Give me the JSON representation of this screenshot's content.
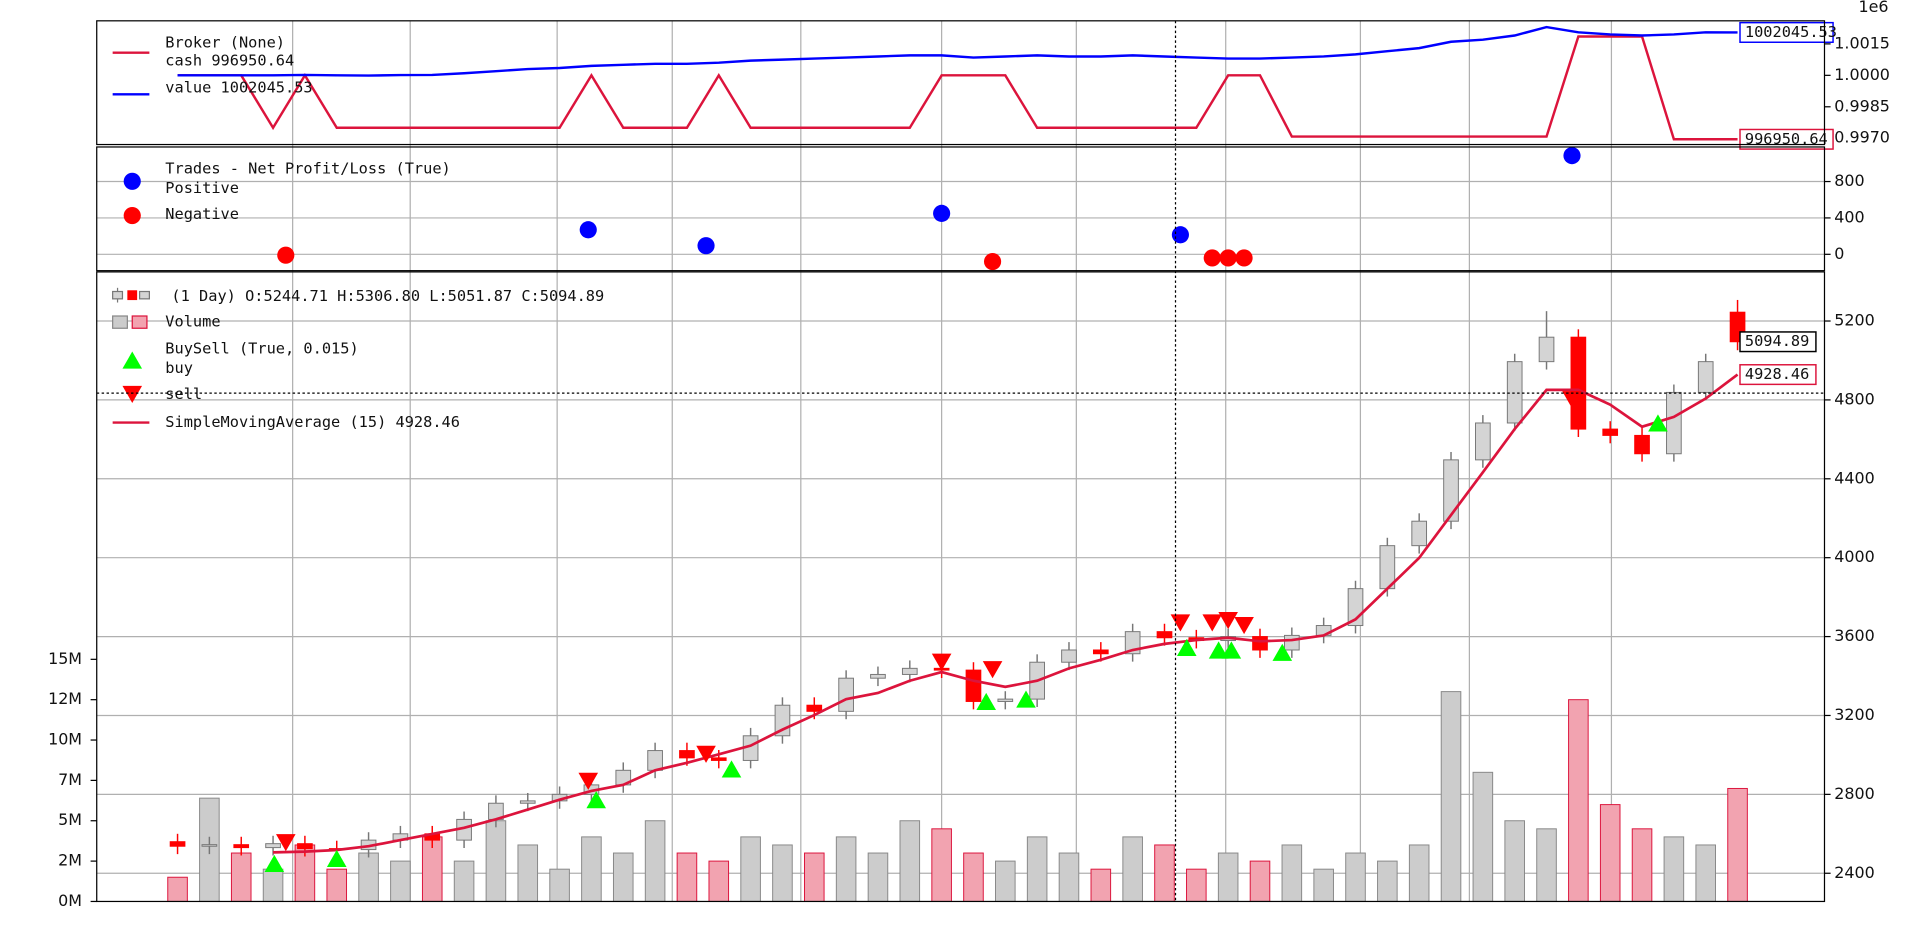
{
  "chart_data": [
    {
      "type": "line",
      "title": "Broker (None)",
      "offset_label": "1e6",
      "ylim": [
        996700,
        1002600
      ],
      "yticks": [
        {
          "value": 997000,
          "label": "0.9970"
        },
        {
          "value": 998500,
          "label": "0.9985"
        },
        {
          "value": 1000000,
          "label": "1.0000"
        },
        {
          "value": 1001500,
          "label": "1.0015"
        }
      ],
      "grid": false,
      "series": [
        {
          "name": "cash 996950.64",
          "color": "#dc143c",
          "end_label": "996950.64",
          "values": [
            1000000,
            1000000,
            1000000,
            997500,
            1000000,
            997500,
            997500,
            997500,
            997500,
            997500,
            997500,
            997500,
            997500,
            1000000,
            997500,
            997500,
            997500,
            1000000,
            997500,
            997500,
            997500,
            997500,
            997500,
            997500,
            1000000,
            1000000,
            1000000,
            997500,
            997500,
            997500,
            997500,
            997500,
            997500,
            1000000,
            1000000,
            997080,
            997080,
            997080,
            997080,
            997080,
            997080,
            997080,
            997080,
            997080,
            1001850,
            1001850,
            1001850,
            996950.64,
            996950.64,
            996950.64
          ]
        },
        {
          "name": "value 1002045.53",
          "color": "#0000ff",
          "end_label": "1002045.53",
          "values": [
            1000000,
            1000000,
            1000000,
            1000000,
            1000020,
            1000000,
            999990,
            1000010,
            1000020,
            1000100,
            1000200,
            1000300,
            1000350,
            1000450,
            1000500,
            1000550,
            1000550,
            1000600,
            1000700,
            1000750,
            1000800,
            1000850,
            1000900,
            1000950,
            1000950,
            1000850,
            1000900,
            1000950,
            1000900,
            1000900,
            1000950,
            1000900,
            1000850,
            1000800,
            1000800,
            1000850,
            1000900,
            1001000,
            1001150,
            1001300,
            1001600,
            1001700,
            1001900,
            1002300,
            1002050,
            1001950,
            1001900,
            1001950,
            1002050,
            1002045.53
          ]
        }
      ]
    },
    {
      "type": "scatter",
      "title": "Trades - Net Profit/Loss (True)",
      "ylim": [
        -180,
        1180
      ],
      "yticks": [
        0,
        400,
        800
      ],
      "grid": true,
      "series": [
        {
          "name": "Positive",
          "color": "#0000ff",
          "x": [
            12.9,
            16.6,
            24,
            31.5,
            43.8
          ],
          "values": [
            270,
            95,
            450,
            215,
            1085
          ]
        },
        {
          "name": "Negative",
          "color": "#ff0000",
          "x": [
            3.4,
            25.6,
            32.5,
            33,
            33.5
          ],
          "values": [
            -10,
            -80,
            -40,
            -40,
            -40
          ]
        }
      ]
    },
    {
      "type": "candlestick",
      "title": "(1 Day) O:5244.71 H:5306.80 L:5051.87 C:5094.89",
      "up_color": "#d4d4d4",
      "down_color": "#ff0000",
      "close_label": "5094.89",
      "ylim": [
        2257,
        5449
      ],
      "yticks": [
        2400,
        2800,
        3200,
        3600,
        4000,
        4400,
        4800,
        5200
      ],
      "grid": true,
      "open": [
        2560,
        2537,
        2545,
        2530,
        2550,
        2525,
        2520,
        2568,
        2600,
        2568,
        2673,
        2755,
        2767,
        2800,
        2848,
        2922,
        3022,
        2985,
        2972,
        3097,
        3252,
        3221,
        3389,
        3408,
        3439,
        3430,
        3271,
        3283,
        3470,
        3532,
        3513,
        3625,
        3594,
        3580,
        3600,
        3532,
        3606,
        3656,
        3843,
        4061,
        4185,
        4496,
        4683,
        4994,
        5118,
        4652,
        4620,
        4527,
        4838,
        5244.71
      ],
      "high": [
        2600,
        2585,
        2585,
        2590,
        2590,
        2565,
        2608,
        2640,
        2640,
        2713,
        2795,
        2807,
        2840,
        2888,
        2962,
        3062,
        3062,
        3025,
        3137,
        3292,
        3292,
        3429,
        3448,
        3479,
        3479,
        3470,
        3323,
        3510,
        3572,
        3572,
        3665,
        3665,
        3634,
        3640,
        3640,
        3646,
        3696,
        3883,
        4101,
        4225,
        4536,
        4723,
        5034,
        5250,
        5158,
        4692,
        4660,
        4878,
        5034,
        5306.8
      ],
      "low": [
        2497,
        2497,
        2490,
        2490,
        2485,
        2480,
        2480,
        2528,
        2528,
        2528,
        2633,
        2715,
        2727,
        2760,
        2808,
        2882,
        2945,
        2932,
        2932,
        3057,
        3181,
        3181,
        3349,
        3368,
        3390,
        3231,
        3231,
        3243,
        3430,
        3473,
        3473,
        3554,
        3540,
        3540,
        3492,
        3492,
        3566,
        3616,
        3803,
        4021,
        4145,
        4456,
        4643,
        4954,
        4612,
        4580,
        4487,
        4487,
        4798,
        5051.87
      ],
      "close": [
        2537,
        2545,
        2530,
        2550,
        2525,
        2520,
        2568,
        2600,
        2568,
        2673,
        2755,
        2767,
        2800,
        2848,
        2922,
        3022,
        2985,
        2972,
        3097,
        3252,
        3221,
        3389,
        3408,
        3439,
        3430,
        3271,
        3283,
        3470,
        3532,
        3513,
        3625,
        3594,
        3580,
        3600,
        3532,
        3606,
        3656,
        3843,
        4061,
        4185,
        4496,
        4683,
        4994,
        5118,
        4652,
        4620,
        4527,
        4838,
        4994,
        5094.89
      ],
      "volume": {
        "name": "Volume",
        "up_color": "#cccccc",
        "down_color": "#f2a3b0",
        "ylim": [
          0,
          39000000
        ],
        "yticks": [
          {
            "value": 0,
            "label": "0M"
          },
          {
            "value": 2500000,
            "label": "2M"
          },
          {
            "value": 5000000,
            "label": "5M"
          },
          {
            "value": 7500000,
            "label": "7M"
          },
          {
            "value": 10000000,
            "label": "10M"
          },
          {
            "value": 12500000,
            "label": "12M"
          },
          {
            "value": 15000000,
            "label": "15M"
          }
        ],
        "values": [
          1500000,
          6400000,
          3000000,
          2000000,
          3500000,
          2000000,
          3000000,
          2500000,
          4000000,
          2500000,
          5000000,
          3500000,
          2000000,
          4000000,
          3000000,
          5000000,
          3000000,
          2500000,
          4000000,
          3500000,
          3000000,
          4000000,
          3000000,
          5000000,
          4500000,
          3000000,
          2500000,
          4000000,
          3000000,
          2000000,
          4000000,
          3500000,
          2000000,
          3000000,
          2500000,
          3500000,
          2000000,
          3000000,
          2500000,
          3500000,
          13000000,
          8000000,
          5000000,
          4500000,
          12500000,
          6000000,
          4500000,
          4000000,
          3500000,
          7000000
        ]
      },
      "buysell": {
        "name": "BuySell (True, 0.015)",
        "buy": {
          "name": "buy",
          "color": "#00ff00",
          "x": [
            3.04,
            5,
            13.15,
            17.4,
            25.4,
            26.65,
            31.7,
            32.7,
            33.1,
            34.7,
            46.5
          ],
          "values": [
            2450,
            2475,
            2773,
            2929,
            3271,
            3283,
            3545,
            3532,
            3532,
            3520,
            4683
          ]
        },
        "sell": {
          "name": "sell",
          "color": "#ff0000",
          "x": [
            3.4,
            12.9,
            16.6,
            24,
            25.6,
            31.5,
            32.5,
            33,
            33.5,
            43.8
          ],
          "values": [
            2555,
            2866,
            3003,
            3470,
            3432,
            3669,
            3669,
            3681,
            3656,
            4801
          ]
        }
      },
      "sma": {
        "name": "SimpleMovingAverage (15) 4928.46",
        "color": "#dc143c",
        "end_label": "4928.46",
        "values": [
          null,
          null,
          null,
          2506,
          2510,
          2518,
          2537,
          2568,
          2599,
          2630,
          2674,
          2723,
          2773,
          2817,
          2848,
          2922,
          2960,
          3003,
          3047,
          3128,
          3202,
          3283,
          3314,
          3376,
          3420,
          3376,
          3345,
          3376,
          3439,
          3482,
          3532,
          3563,
          3582,
          3594,
          3576,
          3582,
          3606,
          3687,
          3843,
          3999,
          4216,
          4433,
          4652,
          4851,
          4851,
          4776,
          4664,
          4714,
          4807,
          4928.46
        ]
      }
    }
  ]
}
